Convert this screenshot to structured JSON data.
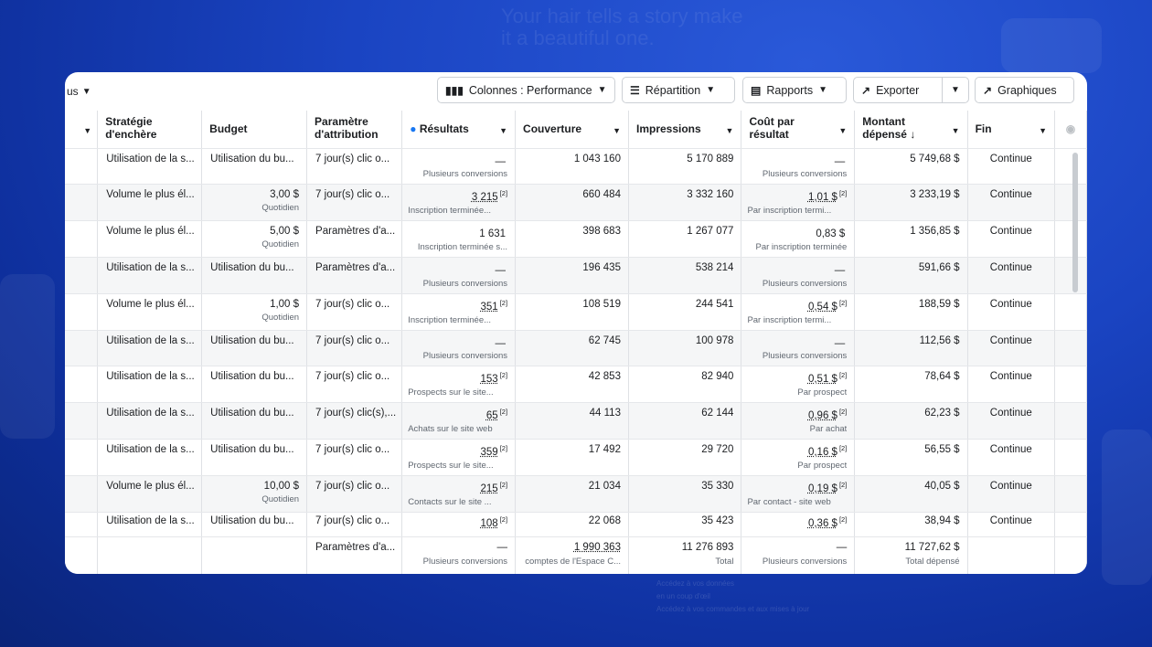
{
  "background": {
    "headline": "Your hair tells a story make it a beautiful one.",
    "footnote_lines": [
      "Accédez à vos données",
      "en un coup d'œil",
      "Accédez à vos commandes et aux mises à jour"
    ]
  },
  "toolbar": {
    "left_label": "us",
    "columns_label": "Colonnes : Performance",
    "breakdown_label": "Répartition",
    "reports_label": "Rapports",
    "export_label": "Exporter",
    "charts_label": "Graphiques"
  },
  "headers": [
    {
      "line1": "Stratégie",
      "line2": "d'enchère"
    },
    {
      "line1": "Budget",
      "line2": ""
    },
    {
      "line1": "Paramètre",
      "line2": "d'attribution"
    },
    {
      "line1": "Résultats",
      "line2": ""
    },
    {
      "line1": "Couverture",
      "line2": ""
    },
    {
      "line1": "Impressions",
      "line2": ""
    },
    {
      "line1": "Coût par",
      "line2": "résultat"
    },
    {
      "line1": "Montant",
      "line2": "dépensé ↓"
    },
    {
      "line1": "Fin",
      "line2": ""
    }
  ],
  "rows": [
    {
      "strategy": "Utilisation de la s...",
      "budget": "Utilisation du bu...",
      "budget_sub": "",
      "attribution": "7 jour(s) clic o...",
      "result": "—",
      "result_sup": "",
      "result_sub": "Plusieurs conversions",
      "reach": "1 043 160",
      "impressions": "5 170 889",
      "cost": "—",
      "cost_sup": "",
      "cost_sub": "Plusieurs conversions",
      "spent": "5 749,68 $",
      "end": "Continue"
    },
    {
      "strategy": "Volume le plus él...",
      "budget": "3,00 $",
      "budget_sub": "Quotidien",
      "attribution": "7 jour(s) clic o...",
      "result": "3 215",
      "result_sup": "[2]",
      "result_sub": "Inscription terminée...",
      "reach": "660 484",
      "impressions": "3 332 160",
      "cost": "1,01 $",
      "cost_sup": "[2]",
      "cost_sub": "Par inscription termi...",
      "spent": "3 233,19 $",
      "end": "Continue"
    },
    {
      "strategy": "Volume le plus él...",
      "budget": "5,00 $",
      "budget_sub": "Quotidien",
      "attribution": "Paramètres d'a...",
      "result": "1 631",
      "result_sup": "",
      "result_sub": "Inscription terminée s...",
      "reach": "398 683",
      "impressions": "1 267 077",
      "cost": "0,83 $",
      "cost_sup": "",
      "cost_sub": "Par inscription terminée",
      "spent": "1 356,85 $",
      "end": "Continue"
    },
    {
      "strategy": "Utilisation de la s...",
      "budget": "Utilisation du bu...",
      "budget_sub": "",
      "attribution": "Paramètres d'a...",
      "result": "—",
      "result_sup": "",
      "result_sub": "Plusieurs conversions",
      "reach": "196 435",
      "impressions": "538 214",
      "cost": "—",
      "cost_sup": "",
      "cost_sub": "Plusieurs conversions",
      "spent": "591,66 $",
      "end": "Continue"
    },
    {
      "strategy": "Volume le plus él...",
      "budget": "1,00 $",
      "budget_sub": "Quotidien",
      "attribution": "7 jour(s) clic o...",
      "result": "351",
      "result_sup": "[2]",
      "result_sub": "Inscription terminée...",
      "reach": "108 519",
      "impressions": "244 541",
      "cost": "0,54 $",
      "cost_sup": "[2]",
      "cost_sub": "Par inscription termi...",
      "spent": "188,59 $",
      "end": "Continue"
    },
    {
      "strategy": "Utilisation de la s...",
      "budget": "Utilisation du bu...",
      "budget_sub": "",
      "attribution": "7 jour(s) clic o...",
      "result": "—",
      "result_sup": "",
      "result_sub": "Plusieurs conversions",
      "reach": "62 745",
      "impressions": "100 978",
      "cost": "—",
      "cost_sup": "",
      "cost_sub": "Plusieurs conversions",
      "spent": "112,56 $",
      "end": "Continue"
    },
    {
      "strategy": "Utilisation de la s...",
      "budget": "Utilisation du bu...",
      "budget_sub": "",
      "attribution": "7 jour(s) clic o...",
      "result": "153",
      "result_sup": "[2]",
      "result_sub": "Prospects sur le site...",
      "reach": "42 853",
      "impressions": "82 940",
      "cost": "0,51 $",
      "cost_sup": "[2]",
      "cost_sub": "Par prospect",
      "spent": "78,64 $",
      "end": "Continue"
    },
    {
      "strategy": "Utilisation de la s...",
      "budget": "Utilisation du bu...",
      "budget_sub": "",
      "attribution": "7 jour(s) clic(s),...",
      "result": "65",
      "result_sup": "[2]",
      "result_sub": "Achats sur le site web",
      "reach": "44 113",
      "impressions": "62 144",
      "cost": "0,96 $",
      "cost_sup": "[2]",
      "cost_sub": "Par achat",
      "spent": "62,23 $",
      "end": "Continue"
    },
    {
      "strategy": "Utilisation de la s...",
      "budget": "Utilisation du bu...",
      "budget_sub": "",
      "attribution": "7 jour(s) clic o...",
      "result": "359",
      "result_sup": "[2]",
      "result_sub": "Prospects sur le site...",
      "reach": "17 492",
      "impressions": "29 720",
      "cost": "0,16 $",
      "cost_sup": "[2]",
      "cost_sub": "Par prospect",
      "spent": "56,55 $",
      "end": "Continue"
    },
    {
      "strategy": "Volume le plus él...",
      "budget": "10,00 $",
      "budget_sub": "Quotidien",
      "attribution": "7 jour(s) clic o...",
      "result": "215",
      "result_sup": "[2]",
      "result_sub": "Contacts sur le site ...",
      "reach": "21 034",
      "impressions": "35 330",
      "cost": "0,19 $",
      "cost_sup": "[2]",
      "cost_sub": "Par contact - site web",
      "spent": "40,05 $",
      "end": "Continue"
    },
    {
      "strategy": "Utilisation de la s...",
      "budget": "Utilisation du bu...",
      "budget_sub": "",
      "attribution": "7 jour(s) clic o...",
      "result": "108",
      "result_sup": "[2]",
      "result_sub": "",
      "reach": "22 068",
      "impressions": "35 423",
      "cost": "0,36 $",
      "cost_sup": "[2]",
      "cost_sub": "",
      "spent": "38,94 $",
      "end": "Continue"
    }
  ],
  "totals": {
    "attribution": "Paramètres d'a...",
    "result": "—",
    "result_sub": "Plusieurs conversions",
    "reach": "1 990 363",
    "reach_sub": "comptes de l'Espace C...",
    "impressions": "11 276 893",
    "impressions_sub": "Total",
    "cost": "—",
    "cost_sub": "Plusieurs conversions",
    "spent": "11 727,62 $",
    "spent_sub": "Total dépensé"
  }
}
